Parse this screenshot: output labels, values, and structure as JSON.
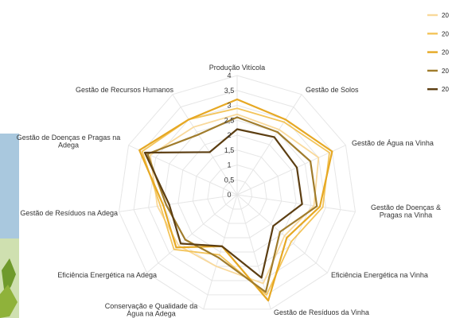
{
  "chart_data": {
    "type": "radar",
    "axes": [
      "Produção Vitícola",
      "Gestão de Solos",
      "Gestão de Água na Vinha",
      "Gestão de Doenças & Pragas na Vinha",
      "Eficiência Energética na Vinha",
      "Gestão de Resíduos da Vinha",
      "Conservação e Qualidade da Água na Adega",
      "Eficiência Energética na Adega",
      "Gestão de Resíduos na Adega",
      "Gestão de Doenças e Pragas na Adega",
      "Gestão de Recursos Humanos"
    ],
    "axis_label_lines": [
      [
        "Produção Vitícola"
      ],
      [
        "Gestão de Solos"
      ],
      [
        "Gestão de Água na Vinha"
      ],
      [
        "Gestão de Doenças &",
        "Pragas na Vinha"
      ],
      [
        "Eficiência Energética na Vinha"
      ],
      [
        "Gestão de Resíduos da Vinha"
      ],
      [
        "Conservação e Qualidade da",
        "Água na Adega"
      ],
      [
        "Eficiência Energética na Adega"
      ],
      [
        "Gestão de Resíduos na Adega"
      ],
      [
        "Gestão de Doenças e Pragas na",
        "Adega"
      ],
      [
        "Gestão de Recursos Humanos"
      ]
    ],
    "r_ticks": [
      "0",
      "0,5",
      "1",
      "1,5",
      "2",
      "2,5",
      "3",
      "3,5",
      "4"
    ],
    "r_range": [
      0,
      4
    ],
    "grid": true,
    "legend_placement": "top-right",
    "series": [
      {
        "name": "20",
        "color": "#f9d99b",
        "values": [
          2.7,
          2.6,
          3.0,
          2.6,
          2.1,
          3.1,
          2.5,
          2.6,
          2.7,
          3.2,
          2.7
        ]
      },
      {
        "name": "20",
        "color": "#f3c45a",
        "values": [
          2.9,
          2.9,
          3.4,
          2.9,
          2.4,
          3.5,
          2.1,
          2.8,
          2.6,
          3.5,
          3.0
        ]
      },
      {
        "name": "20",
        "color": "#e6a823",
        "values": [
          3.2,
          3.0,
          3.5,
          2.8,
          2.2,
          3.7,
          1.8,
          2.7,
          2.5,
          3.6,
          3.0
        ]
      },
      {
        "name": "20",
        "color": "#a07c2c",
        "values": [
          2.6,
          2.5,
          2.7,
          2.7,
          1.9,
          3.4,
          2.2,
          2.3,
          2.4,
          3.3,
          2.4
        ]
      },
      {
        "name": "20",
        "color": "#5c3e12",
        "values": [
          2.2,
          2.3,
          2.2,
          2.2,
          1.6,
          2.9,
          1.8,
          2.5,
          2.3,
          3.4,
          1.7
        ]
      }
    ]
  }
}
